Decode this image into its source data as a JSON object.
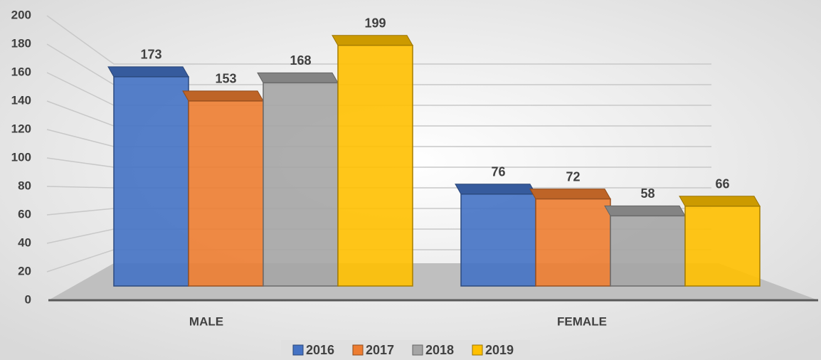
{
  "chart_data": {
    "type": "bar3d",
    "categories": [
      "MALE",
      "FEMALE"
    ],
    "series": [
      {
        "name": "2016",
        "color": "#4472c4",
        "values": [
          173,
          76
        ]
      },
      {
        "name": "2017",
        "color": "#ed7d31",
        "values": [
          153,
          72
        ]
      },
      {
        "name": "2018",
        "color": "#a5a5a5",
        "values": [
          168,
          58
        ]
      },
      {
        "name": "2019",
        "color": "#ffc000",
        "values": [
          199,
          66
        ]
      }
    ],
    "ylim": [
      0,
      200
    ],
    "yticks": [
      0,
      20,
      40,
      60,
      80,
      100,
      120,
      140,
      160,
      180,
      200
    ],
    "grid": true,
    "legend": "bottom"
  }
}
